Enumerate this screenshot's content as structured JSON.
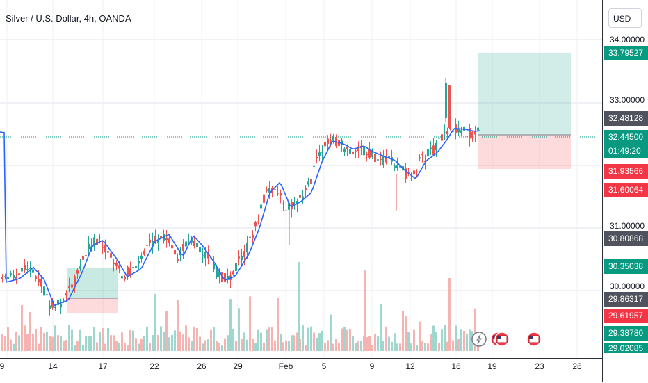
{
  "header": {
    "title": "Silver / U.S. Dollar, 4h, OANDA"
  },
  "price_scale": {
    "currency_button": "USD",
    "ticks": [
      "34.00000",
      "33.00000",
      "31.00000",
      "30.00000"
    ],
    "badges": [
      {
        "value": "33.79527",
        "color": "#089981"
      },
      {
        "value": "32.48128",
        "color": "#50535e"
      },
      {
        "value": "32.44500",
        "color": "#089981"
      },
      {
        "value": "01:49:20",
        "color": "#089981"
      },
      {
        "value": "31.93566",
        "color": "#f23645"
      },
      {
        "value": "31.60064",
        "color": "#f23645"
      },
      {
        "value": "30.80868",
        "color": "#50535e"
      },
      {
        "value": "30.35038",
        "color": "#089981"
      },
      {
        "value": "29.86317",
        "color": "#50535e"
      },
      {
        "value": "29.61957",
        "color": "#f23645"
      },
      {
        "value": "29.38780",
        "color": "#089981"
      },
      {
        "value": "29.02085",
        "color": "#089981"
      }
    ]
  },
  "time_axis": {
    "labels": [
      "9",
      "14",
      "17",
      "22",
      "26",
      "29",
      "Feb",
      "5",
      "9",
      "12",
      "16",
      "19",
      "23",
      "26"
    ]
  },
  "colors": {
    "up": "#26a69a",
    "down": "#ef5350",
    "ma": "#2962ff",
    "target_zone": "#089981",
    "stop_zone": "#f23645",
    "last_price_line": "#089981"
  },
  "event_icons": [
    "flash-icon",
    "us-flag-icon",
    "us-flag-icon",
    "us-flag-icon"
  ]
}
